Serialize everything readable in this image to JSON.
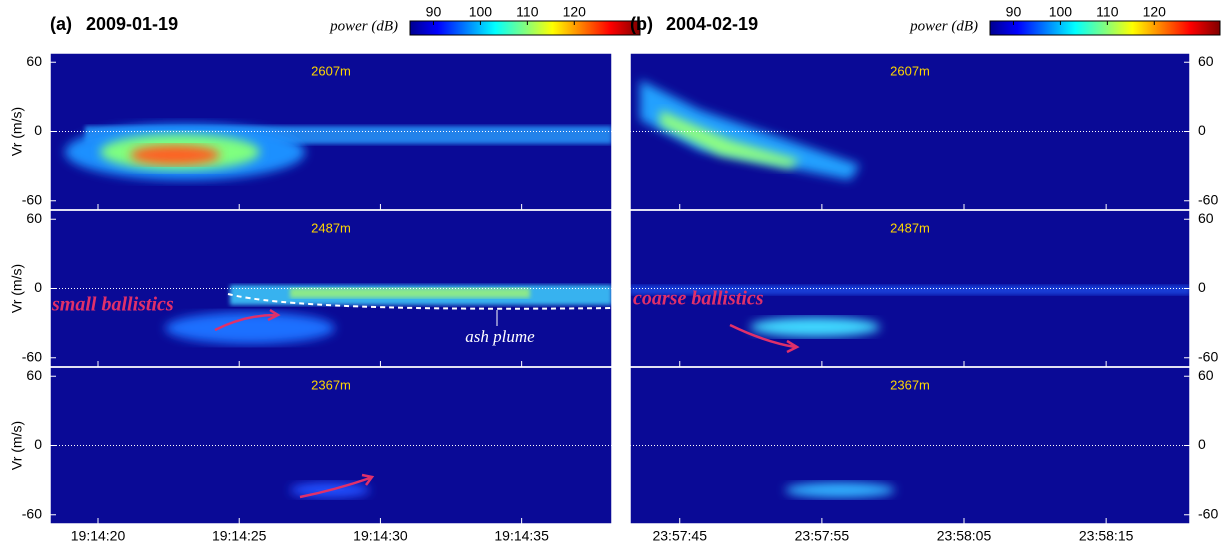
{
  "chart_data": [
    {
      "type": "heatmap",
      "label": "(a)",
      "title": "2009-01-19",
      "colorbar": {
        "label": "power (dB)",
        "lim": [
          85,
          134
        ],
        "ticks": [
          90,
          100,
          110,
          120
        ]
      },
      "ylabel": "Vr (m/s)",
      "ylim": [
        -68,
        68
      ],
      "yticks": [
        -60,
        0,
        60
      ],
      "xlim": [
        "19:14:18.3",
        "19:14:38.2"
      ],
      "xticks": [
        "19:14:20",
        "19:14:25",
        "19:14:30",
        "19:14:35"
      ],
      "panels": [
        "2607m",
        "2487m",
        "2367m"
      ],
      "annotations": [
        "small ballistics",
        "ash plume"
      ],
      "yaxis_side": "left"
    },
    {
      "type": "heatmap",
      "label": "(b)",
      "title": "2004-02-19",
      "colorbar": {
        "label": "power (dB)",
        "lim": [
          85,
          134
        ],
        "ticks": [
          90,
          100,
          110,
          120
        ]
      },
      "ylim": [
        -68,
        68
      ],
      "yticks": [
        -60,
        0,
        60
      ],
      "xlim": [
        "23:57:41.5",
        "23:58:20.9"
      ],
      "xticks": [
        "23:57:45",
        "23:57:55",
        "23:58:05",
        "23:58:15"
      ],
      "panels": [
        "2607m",
        "2487m",
        "2367m"
      ],
      "annotations": [
        "coarse ballistics"
      ],
      "yaxis_side": "right"
    }
  ]
}
